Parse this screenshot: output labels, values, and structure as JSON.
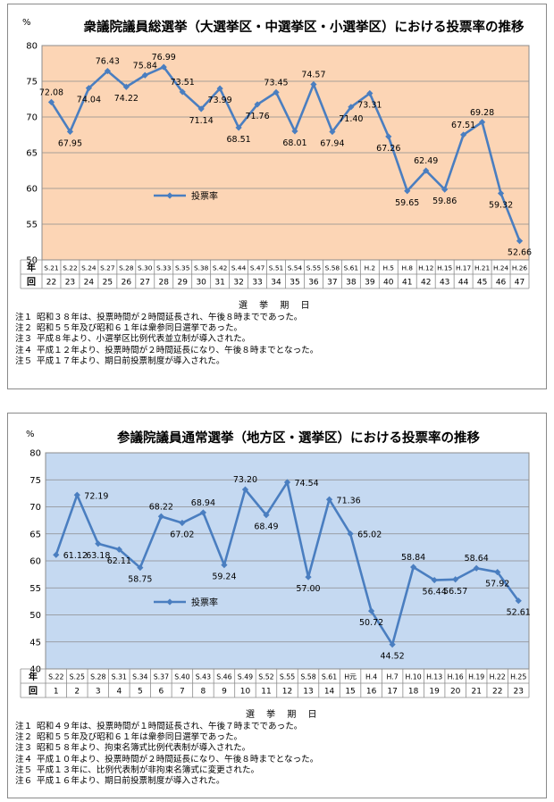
{
  "chart_data": [
    {
      "type": "line",
      "title": "衆議院議員総選挙（大選挙区・中選挙区・小選挙区）における投票率の推移",
      "unit_label": "%",
      "xlabel": "選 挙 期 日",
      "row_labels": [
        "年",
        "回"
      ],
      "ylim": [
        50,
        80
      ],
      "yticks": [
        50,
        55,
        60,
        65,
        70,
        75,
        80
      ],
      "background": "#fcd5b5",
      "line_color": "#4a7ec0",
      "grid": true,
      "legend": "center-left",
      "categories": [
        "S.21",
        "S.22",
        "S.24",
        "S.27",
        "S.28",
        "S.30",
        "S.33",
        "S.35",
        "S.38",
        "S.42",
        "S.44",
        "S.47",
        "S.51",
        "S.54",
        "S.55",
        "S.58",
        "S.61",
        "H.2",
        "H.5",
        "H.8",
        "H.12",
        "H.15",
        "H.17",
        "H.21",
        "H.24",
        "H.26"
      ],
      "rounds": [
        "22",
        "23",
        "24",
        "25",
        "26",
        "27",
        "28",
        "29",
        "30",
        "31",
        "32",
        "33",
        "34",
        "35",
        "36",
        "37",
        "38",
        "39",
        "40",
        "41",
        "42",
        "43",
        "44",
        "45",
        "46",
        "47"
      ],
      "series": [
        {
          "name": "投票率",
          "values": [
            72.08,
            67.95,
            74.04,
            76.43,
            74.22,
            75.84,
            76.99,
            73.51,
            71.14,
            73.99,
            68.51,
            71.76,
            73.45,
            68.01,
            74.57,
            67.94,
            71.4,
            73.31,
            67.26,
            59.65,
            62.49,
            59.86,
            67.51,
            69.28,
            59.32,
            52.66
          ]
        }
      ],
      "data_labels": [
        "72.08",
        "67.95",
        "74.04",
        "76.43",
        "74.22",
        "75.84",
        "76.99",
        "73.51",
        "71.14",
        "73.99",
        "68.51",
        "71.76",
        "73.45",
        "68.01",
        "74.57",
        "67.94",
        "71.40",
        "73.31",
        "67.26",
        "59.65",
        "62.49",
        "59.86",
        "67.51",
        "69.28",
        "59.32",
        "52.66"
      ],
      "label_pos": [
        "a",
        "b",
        "b",
        "a",
        "b",
        "a",
        "a",
        "a",
        "b",
        "b",
        "b",
        "b",
        "a",
        "b",
        "a",
        "b",
        "b",
        "b",
        "b",
        "b",
        "a",
        "b",
        "a",
        "a",
        "b",
        "b"
      ],
      "notes": [
        {
          "tag": "注１",
          "text": "昭和３８年は、投票時間が２時間延長され、午後８時までであった。"
        },
        {
          "tag": "注２",
          "text": "昭和５５年及び昭和６１年は衆参同日選挙であった。"
        },
        {
          "tag": "注３",
          "text": "平成８年より、小選挙区比例代表並立制が導入された。"
        },
        {
          "tag": "注４",
          "text": "平成１２年より、投票時間が２時間延長になり、午後８時までとなった。"
        },
        {
          "tag": "注５",
          "text": "平成１７年より、期日前投票制度が導入された。"
        }
      ]
    },
    {
      "type": "line",
      "title": "参議院議員通常選挙（地方区・選挙区）における投票率の推移",
      "unit_label": "%",
      "xlabel": "選 挙 期 日",
      "row_labels": [
        "年",
        "回"
      ],
      "ylim": [
        40,
        80
      ],
      "yticks": [
        40,
        45,
        50,
        55,
        60,
        65,
        70,
        75,
        80
      ],
      "background": "#c5d9f1",
      "line_color": "#4a7ec0",
      "grid": true,
      "legend": "center-left",
      "categories": [
        "S.22",
        "S.25",
        "S.28",
        "S.31",
        "S.34",
        "S.37",
        "S.40",
        "S.43",
        "S.46",
        "S.49",
        "S.52",
        "S.55",
        "S.58",
        "S.61",
        "H元",
        "H.4",
        "H.7",
        "H.10",
        "H.13",
        "H.16",
        "H.19",
        "H.22",
        "H.25"
      ],
      "rounds": [
        "1",
        "2",
        "3",
        "4",
        "5",
        "6",
        "7",
        "8",
        "9",
        "10",
        "11",
        "12",
        "13",
        "14",
        "15",
        "16",
        "17",
        "18",
        "19",
        "20",
        "21",
        "22",
        "23"
      ],
      "series": [
        {
          "name": "投票率",
          "values": [
            61.12,
            72.19,
            63.18,
            62.11,
            58.75,
            68.22,
            67.02,
            68.94,
            59.24,
            73.2,
            68.49,
            74.54,
            57.0,
            71.36,
            65.02,
            50.72,
            44.52,
            58.84,
            56.44,
            56.57,
            58.64,
            57.92,
            52.61
          ]
        }
      ],
      "data_labels": [
        "61.12",
        "72.19",
        "63.18",
        "62.11",
        "58.75",
        "68.22",
        "67.02",
        "68.94",
        "59.24",
        "73.20",
        "68.49",
        "74.54",
        "57.00",
        "71.36",
        "65.02",
        "50.72",
        "44.52",
        "58.84",
        "56.44",
        "56.57",
        "58.64",
        "57.92",
        "52.61"
      ],
      "label_pos": [
        "r",
        "r",
        "b",
        "b",
        "b",
        "a",
        "b",
        "a",
        "b",
        "a",
        "b",
        "r",
        "b",
        "r",
        "r",
        "b",
        "b",
        "a",
        "b",
        "b",
        "a",
        "b",
        "b"
      ],
      "notes": [
        {
          "tag": "注１",
          "text": "昭和４９年は、投票時間が１時間延長され、午後７時までであった。"
        },
        {
          "tag": "注２",
          "text": "昭和５５年及び昭和６１年は衆参同日選挙であった。"
        },
        {
          "tag": "注３",
          "text": "昭和５８年より、拘束名簿式比例代表制が導入された。"
        },
        {
          "tag": "注４",
          "text": "平成１０年より、投票時間が２時間延長になり、午後８時までとなった。"
        },
        {
          "tag": "注５",
          "text": "平成１３年に、比例代表制が非拘束名簿式に変更された。"
        },
        {
          "tag": "注６",
          "text": "平成１６年より、期日前投票制度が導入された。"
        }
      ]
    }
  ]
}
